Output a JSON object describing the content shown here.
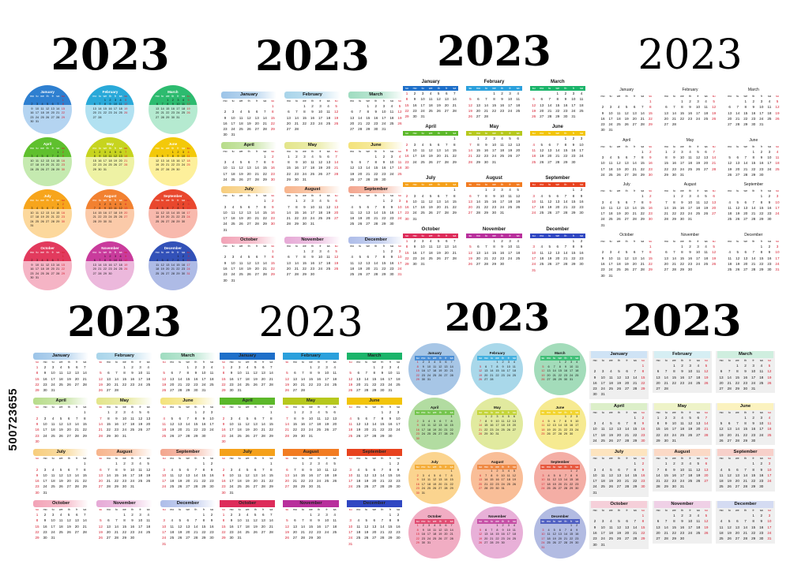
{
  "year": "2023",
  "stock_id": "500723655",
  "weekday_sets": {
    "mon_first": [
      "mo",
      "tu",
      "we",
      "th",
      "fr",
      "sa",
      "su"
    ],
    "sun_first": [
      "su",
      "mo",
      "tu",
      "we",
      "th",
      "fr",
      "sa"
    ]
  },
  "months": [
    {
      "name": "January",
      "days": 31,
      "start_mon": 6
    },
    {
      "name": "February",
      "days": 28,
      "start_mon": 2
    },
    {
      "name": "March",
      "days": 31,
      "start_mon": 2
    },
    {
      "name": "April",
      "days": 30,
      "start_mon": 5
    },
    {
      "name": "May",
      "days": 31,
      "start_mon": 0
    },
    {
      "name": "June",
      "days": 30,
      "start_mon": 3
    },
    {
      "name": "July",
      "days": 31,
      "start_mon": 5
    },
    {
      "name": "August",
      "days": 31,
      "start_mon": 1
    },
    {
      "name": "September",
      "days": 30,
      "start_mon": 4
    },
    {
      "name": "October",
      "days": 31,
      "start_mon": 6
    },
    {
      "name": "November",
      "days": 30,
      "start_mon": 2
    },
    {
      "name": "December",
      "days": 31,
      "start_mon": 4
    }
  ],
  "palettes": {
    "pastel_bands": [
      "#9cc4e8",
      "#a8d4ea",
      "#9fdcc0",
      "#b7dc8a",
      "#e3e58a",
      "#f3e27a",
      "#f7cd7c",
      "#f7b48c",
      "#f3a58e",
      "#f2a2b6",
      "#e6a9d6",
      "#aebde9"
    ],
    "circles_a": [
      "#2e7fd0",
      "#29a9d9",
      "#2dbb6f",
      "#5fc02e",
      "#c7d41f",
      "#f3c90a",
      "#f7a51c",
      "#f28130",
      "#e9472d",
      "#e23a5d",
      "#c93b9c",
      "#3251b8"
    ],
    "circles_a_light": [
      "#b4d4f1",
      "#b1e1f1",
      "#b5ead0",
      "#c5eab0",
      "#eef2a4",
      "#fdf09b",
      "#fcd89c",
      "#fbcaa9",
      "#f8b9ad",
      "#f5b4c5",
      "#ecb8dc",
      "#aebbe6"
    ],
    "bars_bright": [
      "#1e6fc9",
      "#2ba0dc",
      "#1bb46a",
      "#5cb82a",
      "#b6c81d",
      "#f2c40b",
      "#f5a11b",
      "#f27c22",
      "#e8431f",
      "#dd2c5a",
      "#b82f9c",
      "#3047c2"
    ],
    "circles_b": [
      "#a7c6e6",
      "#a9d8ea",
      "#a3dcba",
      "#b2dca1",
      "#e1ea9f",
      "#f6ea91",
      "#fbd48f",
      "#f9be98",
      "#f4aea5",
      "#f1adc3",
      "#e8b0d8",
      "#b2bbe2"
    ],
    "circles_b_band": [
      "#4b8fd6",
      "#45b1e0",
      "#41bf78",
      "#74c44d",
      "#c4d43a",
      "#f2d42e",
      "#f4ad3a",
      "#ef8a45",
      "#e75940",
      "#e04d73",
      "#c650a6",
      "#4f5fc2"
    ],
    "gray_bands": [
      "#cfe3f5",
      "#d6eef3",
      "#cfeedf",
      "#dcefc9",
      "#eef3c8",
      "#fbf2bf",
      "#fde4bf",
      "#fbd9c6",
      "#f7d0ca",
      "#f5cfd9",
      "#efd0e6",
      "#d4dbf2"
    ]
  },
  "panels": [
    {
      "id": "circles-mon",
      "style": "circle",
      "weekstart": "mon",
      "palette": "circles_a",
      "light": "circles_a_light"
    },
    {
      "id": "pastel-mon",
      "style": "band",
      "weekstart": "mon",
      "palette": "pastel_bands"
    },
    {
      "id": "bars-sun",
      "style": "bars",
      "weekstart": "sun",
      "palette": "bars_bright"
    },
    {
      "id": "plain-mon",
      "style": "plain",
      "weekstart": "mon",
      "palette": "pastel_bands"
    },
    {
      "id": "brush-sun",
      "style": "band",
      "weekstart": "sun",
      "palette": "pastel_bands"
    },
    {
      "id": "solid-sun",
      "style": "solidbar",
      "weekstart": "sun",
      "palette": "bars_bright"
    },
    {
      "id": "circles-sun",
      "style": "circle2",
      "weekstart": "sun",
      "palette": "circles_b",
      "light": "circles_b_band"
    },
    {
      "id": "gray-mon",
      "style": "gray",
      "weekstart": "mon",
      "palette": "gray_bands"
    }
  ]
}
